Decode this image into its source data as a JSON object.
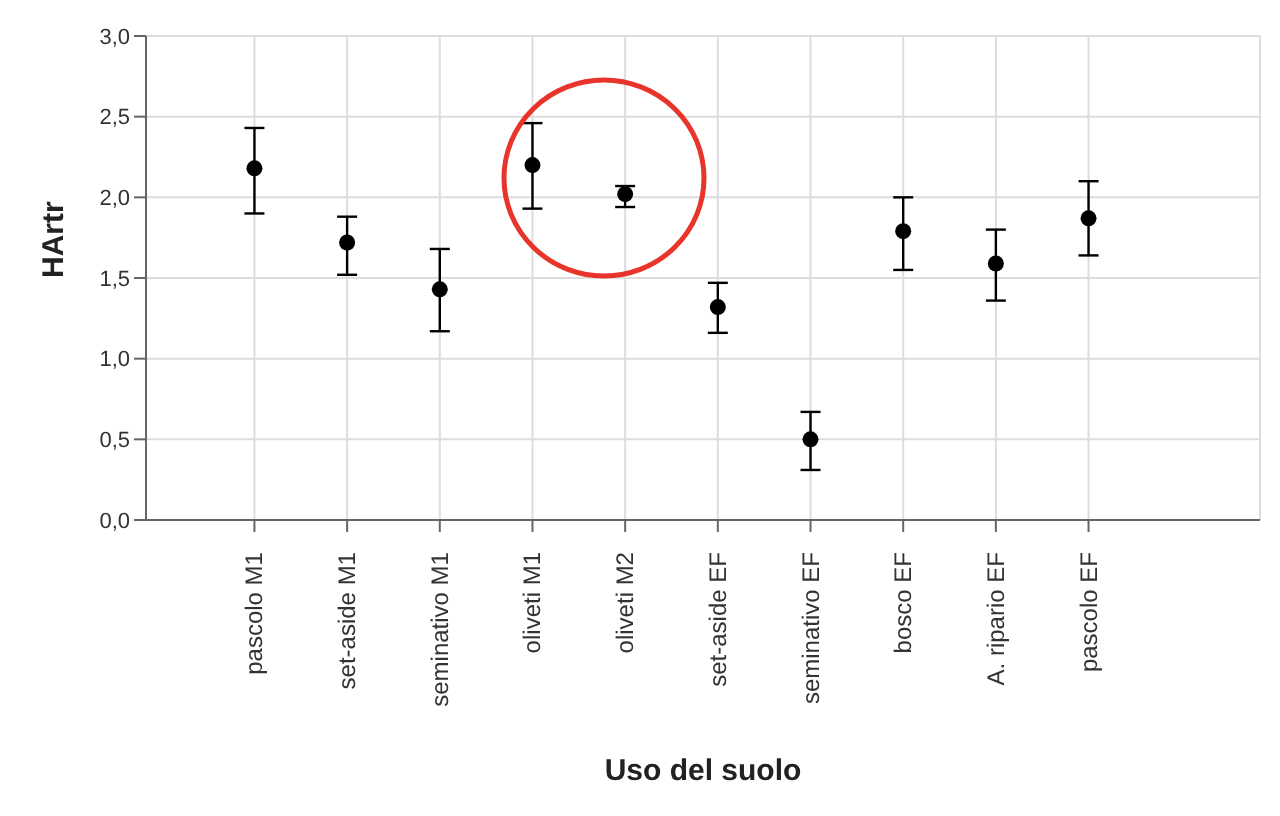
{
  "chart_data": {
    "type": "scatter",
    "xlabel": "Uso del suolo",
    "ylabel": "HArtr",
    "categories": [
      "pascolo M1",
      "set-aside M1",
      "seminativo M1",
      "oliveti M1",
      "oliveti M2",
      "set-aside EF",
      "seminativo EF",
      "bosco EF",
      "A. ripario EF",
      "pascolo EF"
    ],
    "series": [
      {
        "color": "#000000",
        "values": [
          2.18,
          1.72,
          1.43,
          2.2,
          2.02,
          1.32,
          0.5,
          1.79,
          1.59,
          1.87
        ],
        "errors": [
          [
            1.9,
            2.43
          ],
          [
            1.52,
            1.88
          ],
          [
            1.17,
            1.68
          ],
          [
            1.93,
            2.46
          ],
          [
            1.94,
            2.07
          ],
          [
            1.16,
            1.47
          ],
          [
            0.31,
            0.67
          ],
          [
            1.55,
            2.0
          ],
          [
            1.36,
            1.8
          ],
          [
            1.64,
            2.1
          ]
        ]
      }
    ],
    "ylim": [
      0,
      3
    ],
    "yticks": [
      {
        "value": 0,
        "label": "0,0"
      },
      {
        "value": 0.5,
        "label": "0,5"
      },
      {
        "value": 1,
        "label": "1,0"
      },
      {
        "value": 1.5,
        "label": "1,5"
      },
      {
        "value": 2,
        "label": "2,0"
      },
      {
        "value": 2.5,
        "label": "2,5"
      },
      {
        "value": 3,
        "label": "3,0"
      }
    ],
    "grid": true,
    "marker": "circle",
    "legend": false
  }
}
